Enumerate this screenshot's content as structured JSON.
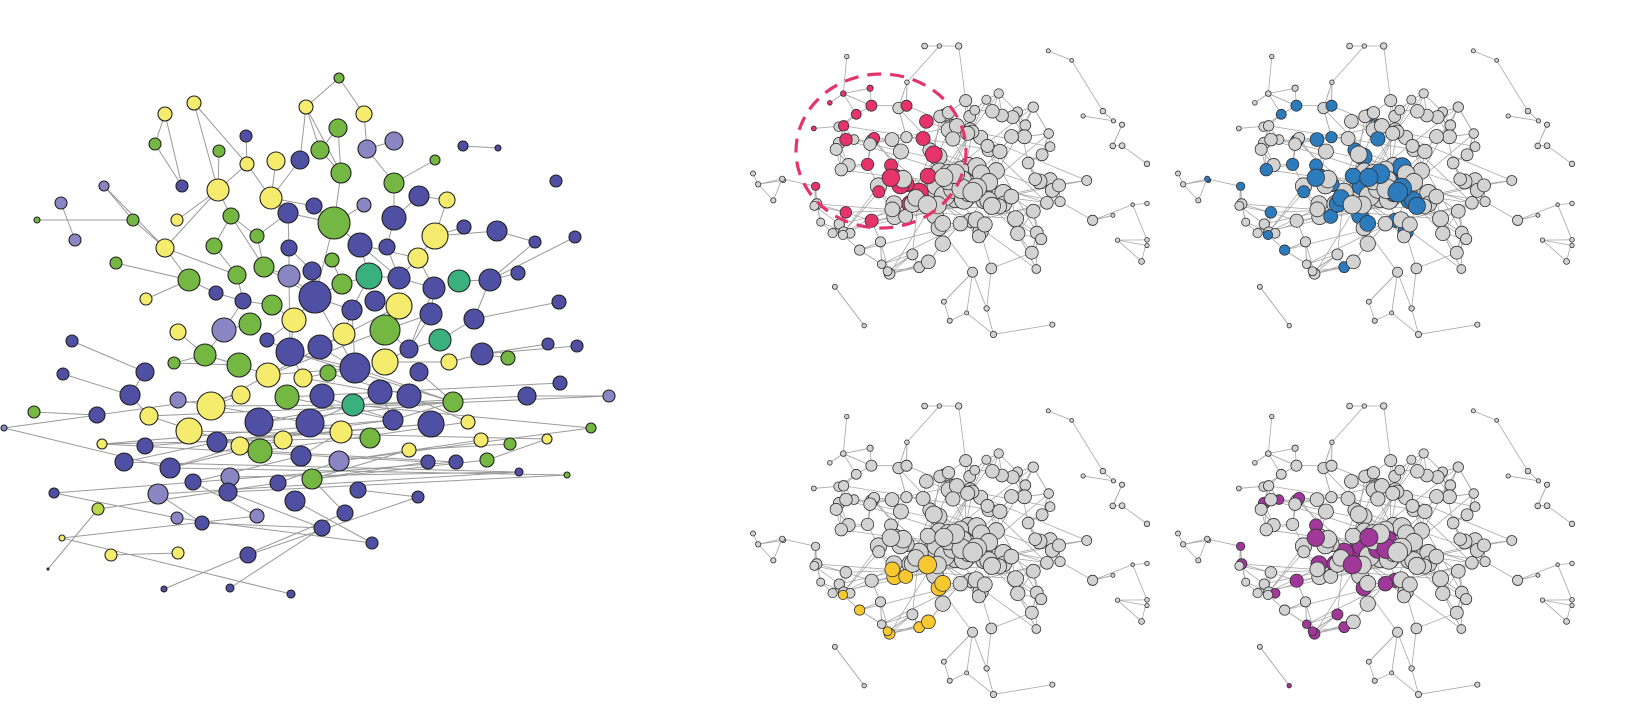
{
  "colors": {
    "background": "#ffffff",
    "edge": "#9a9a9a",
    "node_outline": "#222222",
    "neutral_node": "#d3d3d3"
  },
  "main_network": {
    "palette": [
      "#4f4fa3",
      "#f5ec6e",
      "#74b843",
      "#8a86c4",
      "#8cc66a",
      "#3bb07f",
      "#b8d94a"
    ]
  },
  "panels": [
    {
      "id": "top-left",
      "highlight_color": "#e6336b",
      "has_circle_marker": true,
      "circle_color": "#e6336b"
    },
    {
      "id": "top-right",
      "highlight_color": "#2c7bbd",
      "has_circle_marker": false
    },
    {
      "id": "bottom-left",
      "highlight_color": "#f7c830",
      "has_circle_marker": false
    },
    {
      "id": "bottom-right",
      "highlight_color": "#a0389a",
      "has_circle_marker": false
    }
  ]
}
